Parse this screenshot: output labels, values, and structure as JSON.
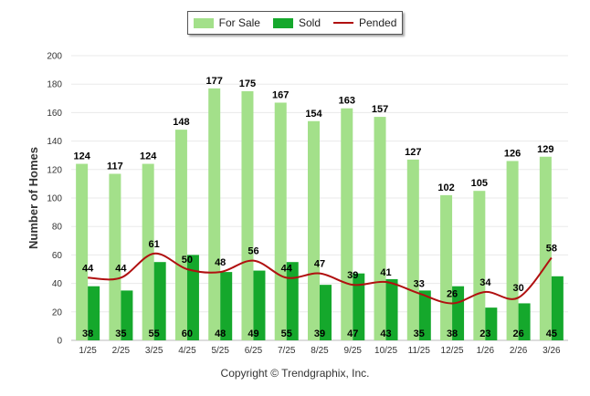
{
  "chart_data": {
    "type": "bar",
    "title": "",
    "xlabel": "",
    "ylabel": "Number of Homes",
    "ylim": [
      0,
      200
    ],
    "yticks": [
      0,
      20,
      40,
      60,
      80,
      100,
      120,
      140,
      160,
      180,
      200
    ],
    "categories": [
      "1/25",
      "2/25",
      "3/25",
      "4/25",
      "5/25",
      "6/25",
      "7/25",
      "8/25",
      "9/25",
      "10/25",
      "11/25",
      "12/25",
      "1/26",
      "2/26",
      "3/26"
    ],
    "series": [
      {
        "name": "For Sale",
        "type": "bar",
        "color": "#a3e08a",
        "values": [
          124,
          117,
          124,
          148,
          177,
          175,
          167,
          154,
          163,
          157,
          127,
          102,
          105,
          126,
          129
        ]
      },
      {
        "name": "Sold",
        "type": "bar",
        "color": "#15a82c",
        "values": [
          38,
          35,
          55,
          60,
          48,
          49,
          55,
          39,
          47,
          43,
          35,
          38,
          23,
          26,
          45
        ]
      },
      {
        "name": "Pended",
        "type": "line",
        "color": "#b01010",
        "values": [
          44,
          44,
          61,
          50,
          48,
          56,
          44,
          47,
          39,
          41,
          33,
          26,
          34,
          30,
          58
        ]
      }
    ],
    "legend": {
      "position": "top",
      "labels": [
        "For Sale",
        "Sold",
        "Pended"
      ]
    }
  },
  "footer": {
    "copyright": "Copyright © Trendgraphix, Inc."
  }
}
